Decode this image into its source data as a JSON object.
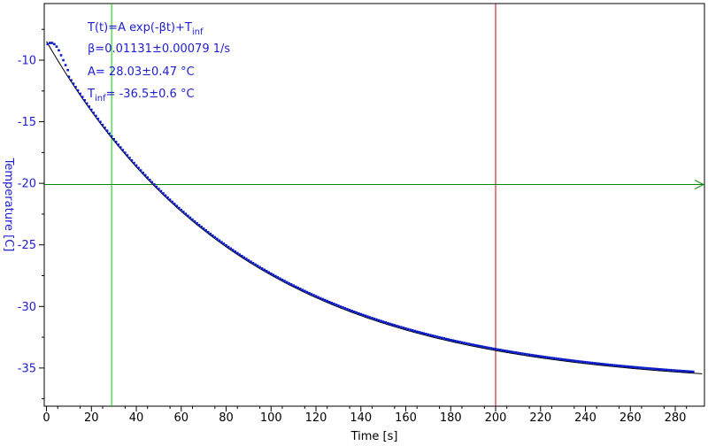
{
  "chart_data": {
    "type": "scatter",
    "xlabel": "Time [s]",
    "ylabel": "Temperature [C]",
    "xlim": [
      -1,
      293
    ],
    "ylim": [
      -38.1,
      -5.4
    ],
    "xticks": [
      0,
      20,
      40,
      60,
      80,
      100,
      120,
      140,
      160,
      180,
      200,
      220,
      240,
      260,
      280
    ],
    "yticks": [
      -10,
      -15,
      -20,
      -25,
      -30,
      -35
    ],
    "grid": false,
    "annotations": {
      "line1_main": "T(t)=A exp(-βt)+T",
      "line1_sub": "inf",
      "line2": "β=0.01131±0.00079 1/s",
      "line3": "A= 28.03±0.47 °C",
      "line4_pre": "T",
      "line4_sub": "inf",
      "line4_post": "= -36.5±0.6 °C"
    },
    "fit": {
      "A": 28.03,
      "beta": 0.01131,
      "T_inf": -36.5,
      "x_range": [
        0,
        292
      ]
    },
    "data_series": {
      "start_points": [
        [
          0.5,
          -8.7
        ],
        [
          1.5,
          -8.6
        ],
        [
          2.5,
          -8.6
        ],
        [
          3.5,
          -8.7
        ],
        [
          4.5,
          -8.9
        ],
        [
          5.5,
          -9.2
        ],
        [
          6.5,
          -9.6
        ],
        [
          7.5,
          -10.0
        ],
        [
          8.5,
          -10.4
        ],
        [
          9.5,
          -10.8
        ]
      ],
      "x_range": [
        10,
        288
      ],
      "step": 1,
      "color": "#0a1ac8"
    },
    "cursors": {
      "vertical_green_x": 29,
      "vertical_red_x": 200,
      "horizontal_green_y": -20.1
    },
    "colors": {
      "data": "#0a1ac8",
      "fit": "#000000",
      "axis_label": "#2020d0",
      "tick_label": "#2020d0",
      "x_tick_label": "#000000",
      "green_cursor": "#00cc00",
      "red_cursor": "#d00000",
      "horizontal_cursor": "#008800"
    }
  }
}
